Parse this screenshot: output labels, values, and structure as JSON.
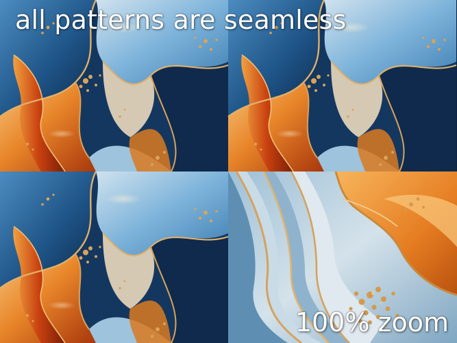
{
  "headline": "all patterns are seamless",
  "zoom_label": "100% zoom",
  "palette": {
    "navy": "#0e2340",
    "deep_blue": "#1c4d7c",
    "sky_blue": "#6aa6d1",
    "pale_blue": "#b9d4e6",
    "cream": "#efe3d0",
    "orange": "#e7892c",
    "burnt_orange": "#c14a12",
    "gold": "#d9a35a"
  }
}
